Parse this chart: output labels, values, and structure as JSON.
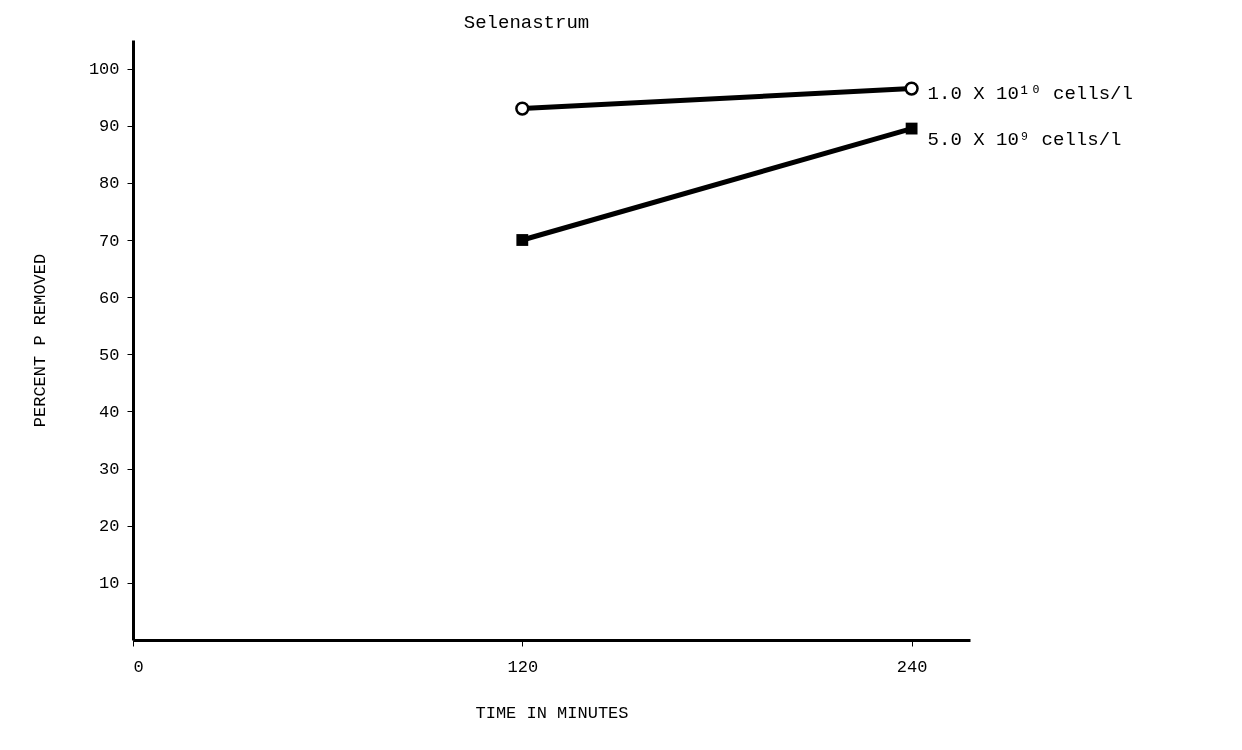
{
  "chart_data": {
    "type": "line",
    "title": "Selenastrum",
    "xlabel": "TIME IN MINUTES",
    "ylabel": "PERCENT P REMOVED",
    "x": [
      120,
      240
    ],
    "series": [
      {
        "name": "1.0 X 10¹⁰ cells/l",
        "color": "#000000",
        "marker": "circle",
        "values": [
          93,
          96.5
        ]
      },
      {
        "name": "5.0 X 10⁹ cells/l",
        "color": "#000000",
        "marker": "square",
        "values": [
          70,
          89.5
        ]
      }
    ],
    "xlim": [
      0,
      258
    ],
    "xticks": [
      0,
      120,
      240
    ],
    "ylim": [
      0,
      105
    ],
    "yticks": [
      10,
      20,
      30,
      40,
      50,
      60,
      70,
      80,
      90,
      100
    ],
    "grid": false,
    "legend": false
  }
}
